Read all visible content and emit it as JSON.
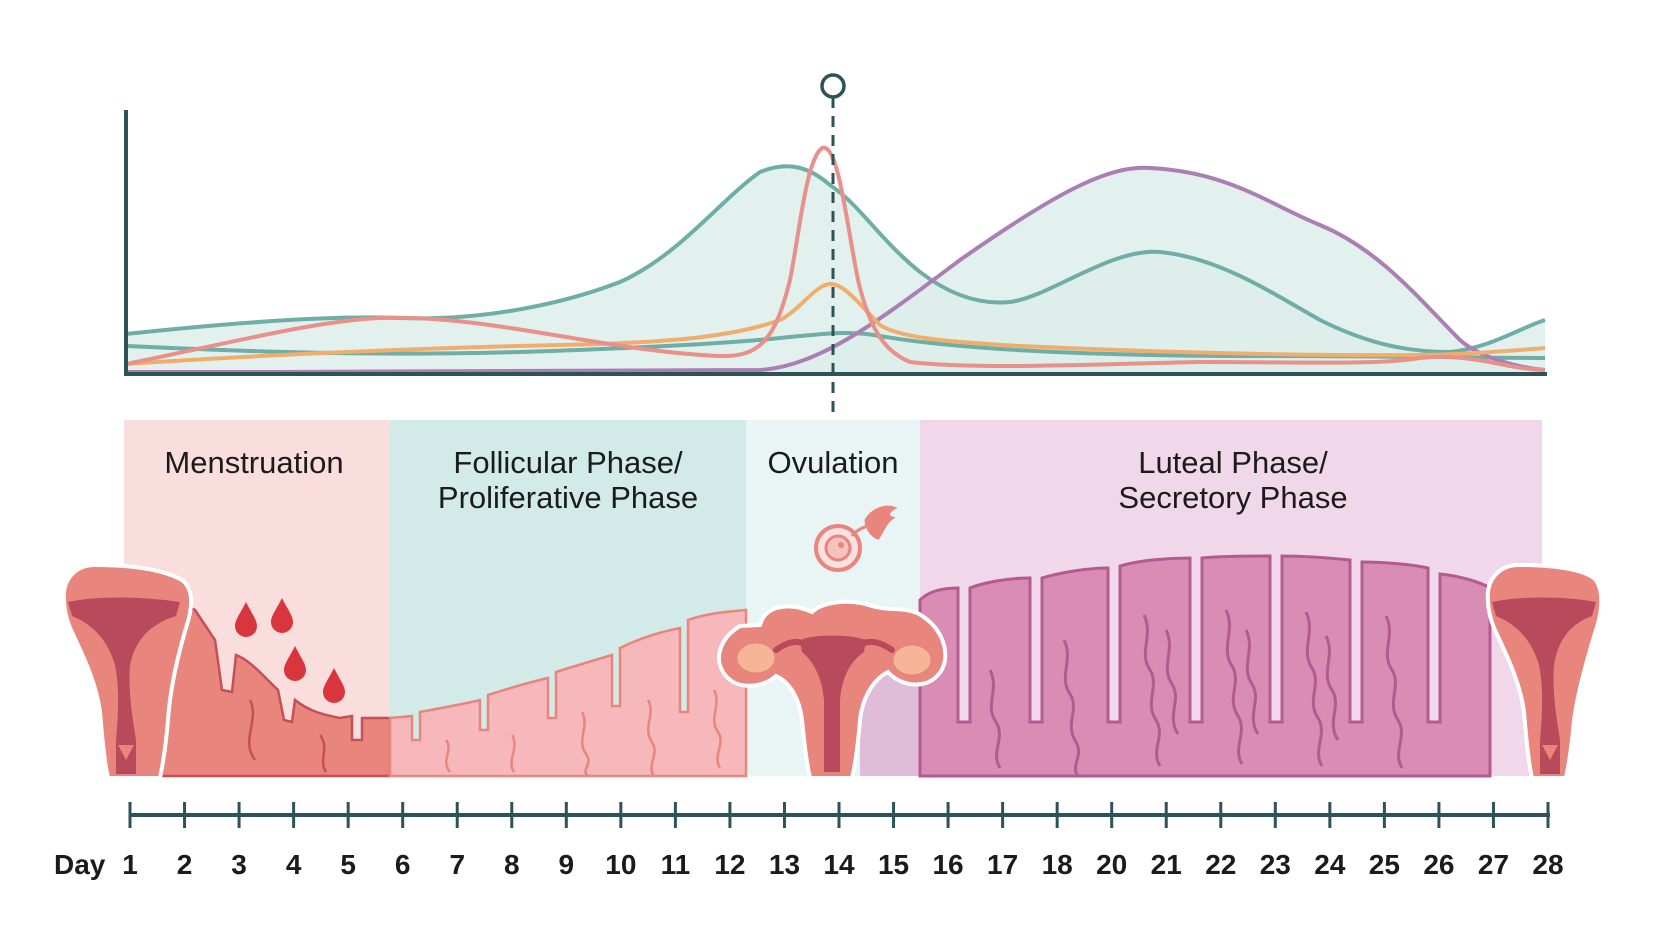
{
  "phases": [
    {
      "label_lines": [
        "Menstruation"
      ]
    },
    {
      "label_lines": [
        "Follicular Phase/",
        "Proliferative Phase"
      ]
    },
    {
      "label_lines": [
        "Ovulation"
      ]
    },
    {
      "label_lines": [
        "Luteal Phase/",
        "Secretory Phase"
      ]
    }
  ],
  "day_axis": {
    "label": "Day",
    "ticks": [
      "1",
      "2",
      "3",
      "4",
      "5",
      "6",
      "7",
      "8",
      "9",
      "10",
      "11",
      "12",
      "13",
      "14",
      "15",
      "16",
      "17",
      "18",
      "20",
      "21",
      "22",
      "23",
      "24",
      "25",
      "26",
      "27",
      "28"
    ]
  },
  "colors": {
    "menstruation_bg": "#f9dedd",
    "follicular_bg": "#d2ebe8",
    "ovulation_bg": "#e8f5f4",
    "luteal_bg": "#f0d8ea",
    "teal": "#6fada7",
    "teal_fill": "#ddeeea",
    "purple": "#ab7fb3",
    "salmon": "#e8908a",
    "orange": "#f0ae6d",
    "axis": "#2d5358",
    "blood": "#d8353d",
    "uterus_outer": "#e8857d",
    "uterus_inner": "#b84a5b"
  }
}
